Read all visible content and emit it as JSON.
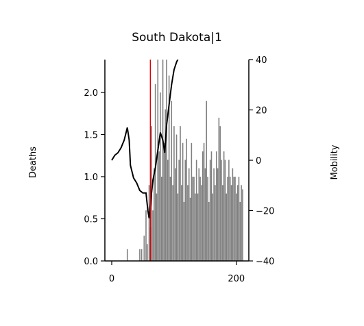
{
  "chart_data": {
    "type": "combo",
    "title": "South Dakota|1",
    "ylabel": "Deaths",
    "y2label": "Mobility",
    "xlim": [
      -11,
      220
    ],
    "xticks": [
      0,
      200
    ],
    "ylim": [
      0,
      2.39
    ],
    "yticks": [
      {
        "value": 0,
        "label": "0.0"
      },
      {
        "value": 0.5,
        "label": "0.5"
      },
      {
        "value": 1,
        "label": "1.0"
      },
      {
        "value": 1.5,
        "label": "1.5"
      },
      {
        "value": 2,
        "label": "2.0"
      }
    ],
    "y2lim": [
      -40,
      40
    ],
    "y2ticks": [
      {
        "value": -40,
        "label": "−40"
      },
      {
        "value": -20,
        "label": "−20"
      },
      0,
      20,
      40
    ],
    "vline": {
      "x": 62,
      "color": "#e00000"
    },
    "series": [
      {
        "type": "bar",
        "axis": "y",
        "color": "#808080",
        "x": [
          25,
          45,
          48,
          52,
          55,
          57,
          60,
          62,
          64,
          66,
          68,
          70,
          72,
          74,
          76,
          78,
          80,
          82,
          84,
          86,
          88,
          90,
          92,
          94,
          96,
          98,
          100,
          102,
          104,
          106,
          108,
          110,
          112,
          114,
          116,
          118,
          120,
          122,
          124,
          126,
          128,
          130,
          132,
          134,
          136,
          138,
          140,
          142,
          144,
          146,
          148,
          150,
          152,
          154,
          156,
          158,
          160,
          162,
          164,
          166,
          168,
          170,
          172,
          174,
          176,
          178,
          180,
          182,
          184,
          186,
          188,
          190,
          192,
          194,
          196,
          198,
          200,
          202,
          204,
          206,
          208,
          210
        ],
        "values": [
          0.14,
          0.14,
          0.14,
          0.3,
          0.6,
          0.2,
          0.9,
          0.4,
          1.6,
          0.6,
          1.1,
          2.1,
          0.8,
          2.4,
          1.3,
          2.0,
          1.0,
          2.6,
          1.4,
          1.8,
          2.5,
          1.2,
          2.2,
          1.0,
          1.9,
          0.9,
          1.6,
          1.1,
          1.5,
          0.8,
          1.2,
          1.6,
          0.9,
          1.4,
          0.7,
          1.2,
          1.45,
          0.9,
          1.1,
          0.75,
          1.4,
          1.0,
          1.0,
          0.8,
          1.2,
          0.8,
          1.1,
          1.0,
          0.9,
          1.3,
          1.4,
          1.1,
          1.9,
          1.0,
          0.7,
          1.2,
          1.3,
          0.8,
          1.1,
          0.9,
          1.3,
          1.1,
          1.7,
          1.6,
          1.2,
          0.9,
          1.3,
          1.2,
          0.8,
          1.0,
          1.2,
          1.0,
          0.9,
          1.1,
          1.0,
          1.0,
          0.8,
          0.9,
          1.0,
          0.7,
          0.9,
          0.85
        ]
      },
      {
        "type": "line",
        "axis": "y2",
        "color": "#000000",
        "x": [
          0,
          5,
          10,
          15,
          20,
          25,
          28,
          30,
          35,
          40,
          45,
          50,
          55,
          58,
          60,
          63,
          66,
          70,
          74,
          78,
          82,
          85,
          88,
          92,
          96,
          100,
          104,
          108,
          112
        ],
        "values": [
          0,
          2,
          3,
          5,
          8,
          13,
          8,
          -2,
          -7,
          -9,
          -12,
          -13,
          -13,
          -20,
          -23,
          -15,
          -8,
          -3,
          4,
          11,
          8,
          3,
          14,
          22,
          30,
          36,
          39,
          41,
          43
        ]
      }
    ]
  }
}
